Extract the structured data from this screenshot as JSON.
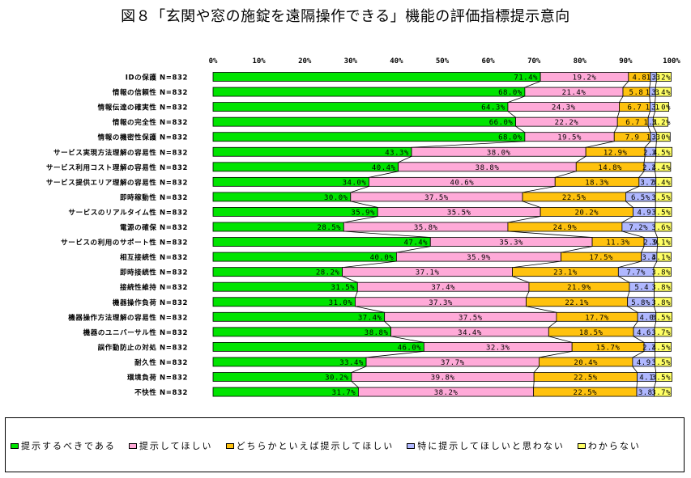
{
  "title": "図８「玄関や窓の施錠を遠隔操作できる」機能の評価指標提示意向",
  "chart_data": {
    "type": "bar",
    "orientation": "horizontal",
    "stacked": true,
    "percent": true,
    "xlim": [
      0,
      100
    ],
    "xticks": [
      "0%",
      "10%",
      "20%",
      "30%",
      "40%",
      "50%",
      "60%",
      "70%",
      "80%",
      "90%",
      "100%"
    ],
    "legend_position": "bottom",
    "series": [
      {
        "name": "提示するべきである",
        "color": "#00e400"
      },
      {
        "name": "提示してほしい",
        "color": "#ffaad8"
      },
      {
        "name": "どちらかといえば提示してほしい",
        "color": "#ffc20e"
      },
      {
        "name": "特に提示してほしいと思わない",
        "color": "#b0b8ff"
      },
      {
        "name": "わからない",
        "color": "#ffff66"
      }
    ],
    "rows": [
      {
        "label": "IDの保護  N=832",
        "values": [
          71.4,
          19.2,
          4.8,
          1.3,
          3.2
        ],
        "labels": [
          "71.4%",
          "19.2%",
          "4.8",
          "1.3",
          "3.2%"
        ]
      },
      {
        "label": "情報の信頼性  N=832",
        "values": [
          68.0,
          21.4,
          5.8,
          1.3,
          3.4
        ],
        "labels": [
          "68.0%",
          "21.4%",
          "5.8",
          "1.3",
          "3.4%"
        ]
      },
      {
        "label": "情報伝達の確実性  N=832",
        "values": [
          64.3,
          24.3,
          6.7,
          1.1,
          3.0
        ],
        "labels": [
          "64.3%",
          "24.3%",
          "6.7",
          "1.1",
          "3.0%"
        ]
      },
      {
        "label": "情報の完全性  N=832",
        "values": [
          66.0,
          22.2,
          6.7,
          1.1,
          3.2
        ],
        "labels": [
          "66.0%",
          "22.2%",
          "6.7",
          "1.1",
          "3.2%"
        ]
      },
      {
        "label": "情報の機密性保護  N=832",
        "values": [
          68.0,
          19.5,
          7.9,
          1.3,
          3.0
        ],
        "labels": [
          "68.0%",
          "19.5%",
          "7.9",
          "1.3",
          "3.0%"
        ]
      },
      {
        "label": "サービス実現方法理解の容易性  N=832",
        "values": [
          43.3,
          38.0,
          12.9,
          2.4,
          3.5
        ],
        "labels": [
          "43.3%",
          "38.0%",
          "12.9%",
          "2.4",
          "3.5%"
        ]
      },
      {
        "label": "サービス利用コスト理解の容易性  N=832",
        "values": [
          40.4,
          38.8,
          14.8,
          2.4,
          3.4
        ],
        "labels": [
          "40.4%",
          "38.8%",
          "14.8%",
          "2.4",
          "3.4%"
        ]
      },
      {
        "label": "サービス提供エリア理解の容易性  N=832",
        "values": [
          34.0,
          40.6,
          18.3,
          3.7,
          3.4
        ],
        "labels": [
          "34.0%",
          "40.6%",
          "18.3%",
          "3.7",
          "3.4%"
        ]
      },
      {
        "label": "即時稼動性  N=832",
        "values": [
          30.0,
          37.5,
          22.5,
          6.5,
          3.5
        ],
        "labels": [
          "30.0%",
          "37.5%",
          "22.5%",
          "6.5%",
          "3.5%"
        ]
      },
      {
        "label": "サービスのリアルタイム性  N=832",
        "values": [
          35.9,
          35.5,
          20.2,
          4.9,
          3.5
        ],
        "labels": [
          "35.9%",
          "35.5%",
          "20.2%",
          "4.9",
          "3.5%"
        ]
      },
      {
        "label": "電源の確保  N=832",
        "values": [
          28.5,
          35.8,
          24.9,
          7.2,
          3.6
        ],
        "labels": [
          "28.5%",
          "35.8%",
          "24.9%",
          "7.2%",
          "3.6%"
        ]
      },
      {
        "label": "サービスの利用のサポート性  N=832",
        "values": [
          47.4,
          35.3,
          11.3,
          2.9,
          3.1
        ],
        "labels": [
          "47.4%",
          "35.3%",
          "11.3%",
          "2.9",
          "3.1%"
        ]
      },
      {
        "label": "相互接続性  N=832",
        "values": [
          40.0,
          35.9,
          17.5,
          3.4,
          3.1
        ],
        "labels": [
          "40.0%",
          "35.9%",
          "17.5%",
          "3.4",
          "3.1%"
        ]
      },
      {
        "label": "即時接続性  N=832",
        "values": [
          28.2,
          37.1,
          23.1,
          7.7,
          3.8
        ],
        "labels": [
          "28.2%",
          "37.1%",
          "23.1%",
          "7.7%",
          "3.8%"
        ]
      },
      {
        "label": "接続性維持  N=832",
        "values": [
          31.5,
          37.4,
          21.9,
          5.4,
          3.8
        ],
        "labels": [
          "31.5%",
          "37.4%",
          "21.9%",
          "5.4",
          "3.8%"
        ]
      },
      {
        "label": "機器操作負荷  N=832",
        "values": [
          31.0,
          37.3,
          22.1,
          5.8,
          3.8
        ],
        "labels": [
          "31.0%",
          "37.3%",
          "22.1%",
          "5.8%",
          "3.8%"
        ]
      },
      {
        "label": "機器操作方法理解の容易性  N=832",
        "values": [
          37.4,
          37.5,
          17.7,
          4.0,
          3.5
        ],
        "labels": [
          "37.4%",
          "37.5%",
          "17.7%",
          "4.0",
          "3.5%"
        ]
      },
      {
        "label": "機器のユニバーサル性  N=832",
        "values": [
          38.8,
          34.4,
          18.5,
          4.6,
          3.7
        ],
        "labels": [
          "38.8%",
          "34.4%",
          "18.5%",
          "4.6",
          "3.7%"
        ]
      },
      {
        "label": "誤作動防止の対処  N=832",
        "values": [
          46.0,
          32.3,
          15.7,
          2.4,
          3.5
        ],
        "labels": [
          "46.0%",
          "32.3%",
          "15.7%",
          "2.4",
          "3.5%"
        ]
      },
      {
        "label": "耐久性  N=832",
        "values": [
          33.4,
          37.7,
          20.4,
          4.9,
          3.5
        ],
        "labels": [
          "33.4%",
          "37.7%",
          "20.4%",
          "4.9",
          "3.5%"
        ]
      },
      {
        "label": "環境負荷  N=832",
        "values": [
          30.2,
          39.8,
          22.5,
          4.1,
          3.5
        ],
        "labels": [
          "30.2%",
          "39.8%",
          "22.5%",
          "4.1",
          "3.5%"
        ]
      },
      {
        "label": "不快性  N=832",
        "values": [
          31.7,
          38.2,
          22.5,
          3.8,
          3.7
        ],
        "labels": [
          "31.7%",
          "38.2%",
          "22.5%",
          "3.8",
          "3.7%"
        ]
      }
    ]
  }
}
